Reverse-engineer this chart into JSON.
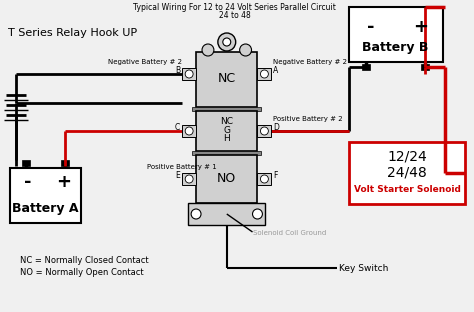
{
  "title_line1": "Typical Wiring For 12 to 24 Volt Series Parallel Circuit",
  "title_line2": "24 to 48",
  "relay_label": "T Series Relay Hook UP",
  "bg_color": "#f0f0f0",
  "black": "#000000",
  "red": "#cc0000",
  "gray": "#999999",
  "light_gray": "#d0d0d0",
  "battery_a_label": "Battery A",
  "battery_b_label": "Battery B",
  "solenoid_label1": "12/24",
  "solenoid_label2": "24/48",
  "solenoid_label3": "Volt Starter Solenoid",
  "nc_label": "NC",
  "no_label": "NO",
  "nc_label2": "NC",
  "g_label": "G",
  "h_label": "H",
  "key_switch": "Key Switch",
  "solenoid_coil": "Solenoid Coil Ground",
  "legend1": "NC = Normally Closed Contact",
  "legend2": "NO = Normally Open Contact",
  "neg_bat2_left": "Negative Battery # 2",
  "neg_bat2_right": "Negative Battery # 2",
  "pos_bat2": "Positive Battery # 2",
  "pos_bat1": "Positive Battery # 1",
  "point_a": "A",
  "point_b": "B",
  "point_c": "C",
  "point_d": "D",
  "point_e": "E",
  "point_f": "F"
}
